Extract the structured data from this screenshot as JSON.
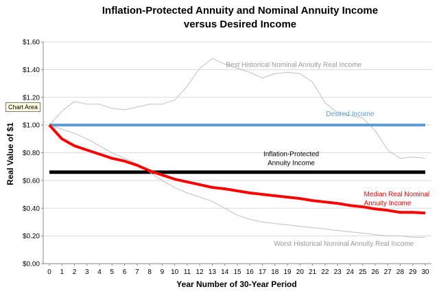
{
  "tooltip": "Chart Area",
  "chart_data": {
    "type": "line",
    "title_lines": [
      "Inflation-Protected Annuity and Nominal Annuity Income",
      "versus Desired Income"
    ],
    "xlabel": "Year Number of 30-Year Period",
    "ylabel": "Real Value of $1",
    "xlim": [
      0,
      30
    ],
    "ylim": [
      0,
      1.6
    ],
    "x_ticks": [
      0,
      1,
      2,
      3,
      4,
      5,
      6,
      7,
      8,
      9,
      10,
      11,
      12,
      13,
      14,
      15,
      16,
      17,
      18,
      19,
      20,
      21,
      22,
      23,
      24,
      25,
      26,
      27,
      28,
      29,
      30
    ],
    "y_ticks": [
      {
        "value": 0,
        "label": "$0.00"
      },
      {
        "value": 0.2,
        "label": "$0.20"
      },
      {
        "value": 0.4,
        "label": "$0.40"
      },
      {
        "value": 0.6,
        "label": "$0.60"
      },
      {
        "value": 0.8,
        "label": "$0.80"
      },
      {
        "value": 1.0,
        "label": "$1.00"
      },
      {
        "value": 1.2,
        "label": "$1.20"
      },
      {
        "value": 1.4,
        "label": "$1.40"
      },
      {
        "value": 1.6,
        "label": "$1.60"
      }
    ],
    "grid": true,
    "legend": "none",
    "x": [
      0,
      1,
      2,
      3,
      4,
      5,
      6,
      7,
      8,
      9,
      10,
      11,
      12,
      13,
      14,
      15,
      16,
      17,
      18,
      19,
      20,
      21,
      22,
      23,
      24,
      25,
      26,
      27,
      28,
      29,
      30
    ],
    "series": [
      {
        "name": "Best Historical Nominal Annuity Real Income",
        "label_lines": [
          "Best Historical Nominal Annuity Real Income"
        ],
        "label_at": [
          19.5,
          1.42
        ],
        "label_anchor": "middle",
        "color": "#c0c0c0",
        "width": 1,
        "values": [
          1.0,
          1.1,
          1.17,
          1.15,
          1.15,
          1.12,
          1.11,
          1.13,
          1.15,
          1.15,
          1.18,
          1.28,
          1.41,
          1.48,
          1.44,
          1.41,
          1.38,
          1.34,
          1.37,
          1.38,
          1.37,
          1.31,
          1.16,
          1.09,
          1.07,
          1.05,
          0.96,
          0.82,
          0.76,
          0.77,
          0.76
        ]
      },
      {
        "name": "Desired Income",
        "label_lines": [
          "Desired Income"
        ],
        "label_at": [
          24.0,
          1.065
        ],
        "label_anchor": "middle",
        "color": "#5b9bd5",
        "width": 4,
        "values": [
          1.0,
          1.0,
          1.0,
          1.0,
          1.0,
          1.0,
          1.0,
          1.0,
          1.0,
          1.0,
          1.0,
          1.0,
          1.0,
          1.0,
          1.0,
          1.0,
          1.0,
          1.0,
          1.0,
          1.0,
          1.0,
          1.0,
          1.0,
          1.0,
          1.0,
          1.0,
          1.0,
          1.0,
          1.0,
          1.0,
          1.0
        ]
      },
      {
        "name": "Inflation-Protected Annuity Income",
        "label_lines": [
          "Inflation-Protected",
          "Annuity Income"
        ],
        "label_at": [
          19.3,
          0.775
        ],
        "label_anchor": "middle",
        "color": "#000000",
        "width": 5,
        "values": [
          0.66,
          0.66,
          0.66,
          0.66,
          0.66,
          0.66,
          0.66,
          0.66,
          0.66,
          0.66,
          0.66,
          0.66,
          0.66,
          0.66,
          0.66,
          0.66,
          0.66,
          0.66,
          0.66,
          0.66,
          0.66,
          0.66,
          0.66,
          0.66,
          0.66,
          0.66,
          0.66,
          0.66,
          0.66,
          0.66,
          0.66
        ]
      },
      {
        "name": "Worst Historical Nominal Annuity Real Income",
        "label_lines": [
          "Worst Historical Nominal Annuity Real Income"
        ],
        "label_at": [
          23.5,
          0.13
        ],
        "label_anchor": "middle",
        "color": "#c0c0c0",
        "width": 1,
        "values": [
          1.0,
          0.97,
          0.94,
          0.9,
          0.85,
          0.8,
          0.76,
          0.72,
          0.66,
          0.6,
          0.55,
          0.51,
          0.48,
          0.45,
          0.4,
          0.35,
          0.32,
          0.3,
          0.29,
          0.28,
          0.27,
          0.26,
          0.25,
          0.24,
          0.23,
          0.22,
          0.21,
          0.2,
          0.2,
          0.19,
          0.19
        ]
      },
      {
        "name": "Median Real Nominal Annuity Income",
        "label_lines": [
          "Median Real  Nominal",
          "Annuity Income"
        ],
        "label_at": [
          25.1,
          0.485
        ],
        "label_anchor": "start",
        "color": "#ff0000",
        "width": 4,
        "values": [
          1.0,
          0.9,
          0.85,
          0.82,
          0.79,
          0.76,
          0.74,
          0.71,
          0.67,
          0.64,
          0.61,
          0.59,
          0.57,
          0.55,
          0.54,
          0.525,
          0.51,
          0.5,
          0.49,
          0.48,
          0.47,
          0.455,
          0.445,
          0.435,
          0.42,
          0.41,
          0.395,
          0.385,
          0.37,
          0.37,
          0.365
        ]
      }
    ]
  }
}
